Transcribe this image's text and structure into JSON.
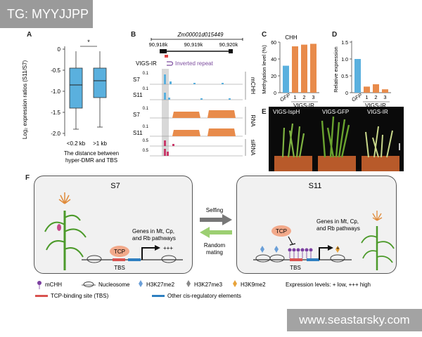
{
  "watermark_top": "TG: MYYJJPP",
  "watermark_bottom": "www.seastarsky.com",
  "panelA": {
    "letter": "A",
    "ylabel": "Log₂ expression ratios (S11/S7)",
    "yticks": [
      "0",
      "-0.5",
      "-1.0",
      "-1.5",
      "-2.0"
    ],
    "categories": [
      "<0.2 kb",
      ">1 kb"
    ],
    "significance": "*",
    "xlabel_line1": "The distance between",
    "xlabel_line2": "hyper-DMR and TBS",
    "boxes": [
      {
        "q1": -1.4,
        "median": -0.85,
        "q3": -0.45,
        "whisker_low": -1.9,
        "whisker_high": -0.05
      },
      {
        "q1": -1.15,
        "median": -0.75,
        "q3": -0.45,
        "whisker_low": -1.85,
        "whisker_high": -0.05
      }
    ],
    "color": "#5ab0de"
  },
  "panelB": {
    "letter": "B",
    "gene": "Zm00001d015449",
    "coords": [
      "90,918k",
      "90,919k",
      "90,920k"
    ],
    "construct": "VIGS-IR",
    "construct_label": "Inverted repeat",
    "tracks": [
      {
        "sample": "S7",
        "scale": "0.1",
        "group": "mCHH"
      },
      {
        "sample": "S11",
        "scale": "0.1",
        "group": "mCHH"
      },
      {
        "sample": "S7",
        "scale": "0.1",
        "group": "RNA"
      },
      {
        "sample": "S11",
        "scale": "0.1",
        "group": "RNA"
      },
      {
        "sample": "",
        "scale": "0.5",
        "group": "siRNA"
      },
      {
        "sample": "",
        "scale": "0.5",
        "group": "siRNA"
      }
    ],
    "group_labels": [
      "mCHH",
      "RNA",
      "siRNA"
    ],
    "sample_labels": [
      "S7",
      "S11",
      "S7",
      "S11"
    ]
  },
  "panelC": {
    "letter": "C",
    "title": "CHH",
    "ylabel": "Methylation level (%)",
    "yticks": [
      "60",
      "40",
      "20",
      "0"
    ],
    "categories": [
      "GFP",
      "1",
      "2",
      "3"
    ],
    "group_label": "VIGS-IR",
    "values": [
      32,
      55,
      57,
      58
    ],
    "colors": [
      "#5ab0de",
      "#e88b4b",
      "#e88b4b",
      "#e88b4b"
    ]
  },
  "panelD": {
    "letter": "D",
    "ylabel": "Relative expression",
    "yticks": [
      "1.5",
      "1.0",
      "0.5",
      "0"
    ],
    "categories": [
      "GFP",
      "1",
      "2",
      "3"
    ],
    "group_label": "VIGS-IR",
    "values": [
      1.0,
      0.18,
      0.25,
      0.1
    ],
    "colors": [
      "#5ab0de",
      "#e88b4b",
      "#e88b4b",
      "#e88b4b"
    ]
  },
  "panelE": {
    "letter": "E",
    "labels": [
      "VIGS-IspH",
      "VIGS-GFP",
      "VIGS-IR"
    ]
  },
  "panelF": {
    "letter": "F",
    "s7": {
      "title": "S7",
      "genes_line1": "Genes in Mt, Cp,",
      "genes_line2": "and Rb pathways",
      "tcp": "TCP",
      "tbs": "TBS",
      "level": "+++"
    },
    "s11": {
      "title": "S11",
      "genes_line1": "Genes in Mt, Cp,",
      "genes_line2": "and Rb pathways",
      "tcp": "TCP",
      "tbs": "TBS",
      "level": "+"
    },
    "arrow_forward": "Selfing",
    "arrow_back_line1": "Random",
    "arrow_back_line2": "mating",
    "legend": {
      "mchh": "mCHH",
      "nucleosome": "Nucleosome",
      "k27me2": "H3K27me2",
      "k27me3": "H3K27me3",
      "k9me2": "H3K9me2",
      "expression": "Expression levels: + low, +++ high",
      "tbs": "TCP-binding site (TBS)",
      "other": "Other cis-regulatory elements"
    }
  }
}
